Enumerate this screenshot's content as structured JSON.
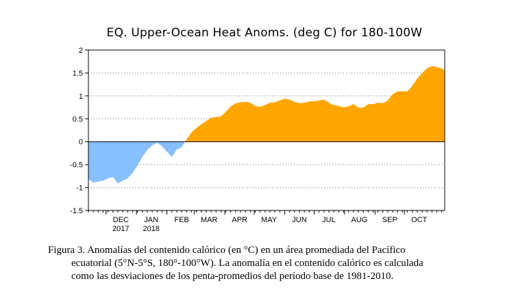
{
  "chart_data": {
    "type": "area",
    "title": "EQ. Upper-Ocean Heat Anoms. (deg C) for 180-100W",
    "ylim": [
      -1.5,
      2
    ],
    "yticks": [
      -1.5,
      -1,
      -0.5,
      0,
      0.5,
      1,
      1.5,
      2
    ],
    "ytick_labels": [
      "-1.5",
      "-1",
      "-0.5",
      "0",
      "0.5",
      "1",
      "1.5",
      "2"
    ],
    "xlim": [
      "2017-11-13",
      "2018-11-11"
    ],
    "month_ticks": [
      {
        "date": "2017-12-01",
        "label": "DEC",
        "sub": "2017"
      },
      {
        "date": "2018-01-01",
        "label": "JAN",
        "sub": "2018"
      },
      {
        "date": "2018-02-01",
        "label": "FEB",
        "sub": ""
      },
      {
        "date": "2018-03-01",
        "label": "MAR",
        "sub": ""
      },
      {
        "date": "2018-04-01",
        "label": "APR",
        "sub": ""
      },
      {
        "date": "2018-05-01",
        "label": "MAY",
        "sub": ""
      },
      {
        "date": "2018-06-01",
        "label": "JUN",
        "sub": ""
      },
      {
        "date": "2018-07-01",
        "label": "JUL",
        "sub": ""
      },
      {
        "date": "2018-08-01",
        "label": "AUG",
        "sub": ""
      },
      {
        "date": "2018-09-01",
        "label": "SEP",
        "sub": ""
      },
      {
        "date": "2018-10-01",
        "label": "OCT",
        "sub": ""
      }
    ],
    "positive_color": "#ffa500",
    "negative_color": "#87bfff",
    "grid": "dotted-horizontal",
    "series": [
      {
        "x": [
          "2017-11-13",
          "2017-11-18",
          "2017-11-23",
          "2017-11-28",
          "2017-12-03",
          "2017-12-08",
          "2017-12-13",
          "2017-12-18",
          "2017-12-23",
          "2017-12-28",
          "2018-01-02",
          "2018-01-07",
          "2018-01-12",
          "2018-01-17",
          "2018-01-22",
          "2018-01-27",
          "2018-02-01",
          "2018-02-06",
          "2018-02-11",
          "2018-02-16",
          "2018-02-21",
          "2018-02-26",
          "2018-03-03",
          "2018-03-08",
          "2018-03-13",
          "2018-03-18",
          "2018-03-23",
          "2018-03-28",
          "2018-04-02",
          "2018-04-07",
          "2018-04-12",
          "2018-04-17",
          "2018-04-22",
          "2018-04-27",
          "2018-05-02",
          "2018-05-07",
          "2018-05-12",
          "2018-05-17",
          "2018-05-22",
          "2018-05-27",
          "2018-06-01",
          "2018-06-06",
          "2018-06-11",
          "2018-06-16",
          "2018-06-21",
          "2018-06-26",
          "2018-07-01",
          "2018-07-06",
          "2018-07-11",
          "2018-07-16",
          "2018-07-21",
          "2018-07-26",
          "2018-07-31",
          "2018-08-05",
          "2018-08-10",
          "2018-08-15",
          "2018-08-20",
          "2018-08-25",
          "2018-08-30",
          "2018-09-04",
          "2018-09-09",
          "2018-09-14",
          "2018-09-19",
          "2018-09-24",
          "2018-09-29",
          "2018-10-04",
          "2018-10-09",
          "2018-10-14",
          "2018-10-19",
          "2018-10-24",
          "2018-10-29",
          "2018-11-03",
          "2018-11-08",
          "2018-11-11"
        ],
        "values": [
          -0.82,
          -0.89,
          -0.87,
          -0.85,
          -0.8,
          -0.77,
          -0.91,
          -0.85,
          -0.8,
          -0.68,
          -0.52,
          -0.33,
          -0.18,
          -0.08,
          -0.02,
          -0.1,
          -0.22,
          -0.33,
          -0.17,
          -0.12,
          0.05,
          0.2,
          0.3,
          0.38,
          0.45,
          0.52,
          0.54,
          0.55,
          0.65,
          0.77,
          0.84,
          0.86,
          0.87,
          0.85,
          0.78,
          0.76,
          0.8,
          0.85,
          0.86,
          0.9,
          0.94,
          0.92,
          0.87,
          0.84,
          0.85,
          0.88,
          0.88,
          0.9,
          0.92,
          0.85,
          0.8,
          0.78,
          0.75,
          0.77,
          0.82,
          0.75,
          0.74,
          0.82,
          0.82,
          0.85,
          0.84,
          0.9,
          1.04,
          1.1,
          1.1,
          1.1,
          1.22,
          1.38,
          1.5,
          1.6,
          1.65,
          1.63,
          1.6,
          1.55
        ]
      }
    ]
  },
  "caption": {
    "line1": "Figura 3. Anomalías del contenido calórico (en °C) en un área promediada del Pacífico",
    "line2": "ecuatorial (5°N-5°S, 180°-100°W). La anomalía en el contenido calórico es calculada",
    "line3": "como las desviaciones de los penta-promedios del período base de 1981-2010."
  }
}
